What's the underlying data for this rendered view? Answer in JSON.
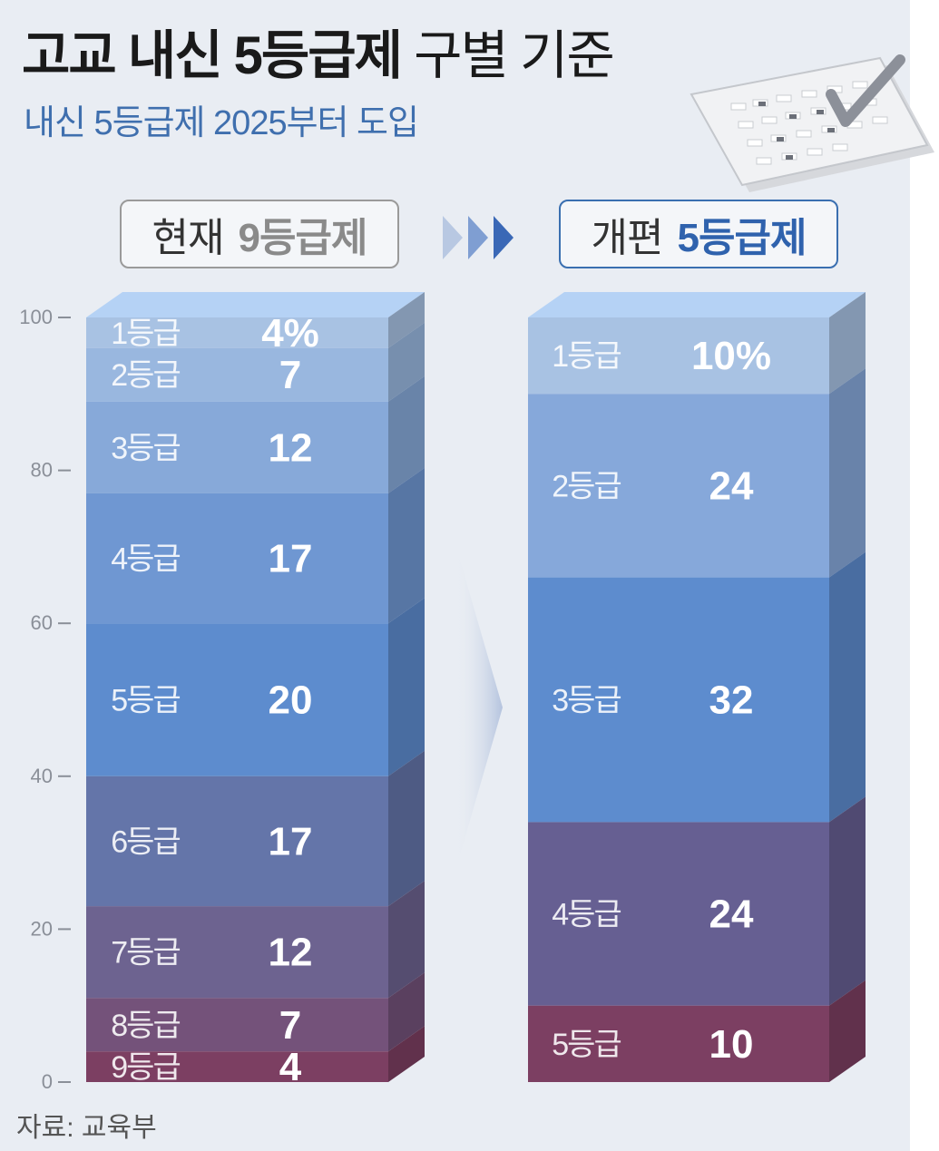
{
  "header": {
    "title_bold": "고교 내신 5등급제",
    "title_light": "구별 기준",
    "subtitle": "내신 5등급제 2025부터 도입"
  },
  "left_label": {
    "prefix": "현재",
    "accent": "9등급제"
  },
  "right_label": {
    "prefix": "개편",
    "accent": "5등급제"
  },
  "source": "자료: 교육부",
  "chart_data": [
    {
      "type": "bar",
      "stacked": true,
      "label": "현재 9등급제",
      "ylim": [
        0,
        100
      ],
      "yticks": [
        0,
        20,
        40,
        60,
        80,
        100
      ],
      "segments": [
        {
          "label": "1등급",
          "value": 4,
          "value_text": "4%",
          "color": "#a8c2e3"
        },
        {
          "label": "2등급",
          "value": 7,
          "value_text": "7",
          "color": "#99b7df"
        },
        {
          "label": "3등급",
          "value": 12,
          "value_text": "12",
          "color": "#87a9d9"
        },
        {
          "label": "4등급",
          "value": 17,
          "value_text": "17",
          "color": "#6f97d2"
        },
        {
          "label": "5등급",
          "value": 20,
          "value_text": "20",
          "color": "#5d8cce"
        },
        {
          "label": "6등급",
          "value": 17,
          "value_text": "17",
          "color": "#6475a9"
        },
        {
          "label": "7등급",
          "value": 12,
          "value_text": "12",
          "color": "#6d6390"
        },
        {
          "label": "8등급",
          "value": 7,
          "value_text": "7",
          "color": "#74527a"
        },
        {
          "label": "9등급",
          "value": 4,
          "value_text": "4",
          "color": "#7c3f62"
        }
      ]
    },
    {
      "type": "bar",
      "stacked": true,
      "label": "개편 5등급제",
      "ylim": [
        0,
        100
      ],
      "segments": [
        {
          "label": "1등급",
          "value": 10,
          "value_text": "10%",
          "color": "#a8c2e3"
        },
        {
          "label": "2등급",
          "value": 24,
          "value_text": "24",
          "color": "#86a8da"
        },
        {
          "label": "3등급",
          "value": 32,
          "value_text": "32",
          "color": "#5d8cce"
        },
        {
          "label": "4등급",
          "value": 24,
          "value_text": "24",
          "color": "#665f92"
        },
        {
          "label": "5등급",
          "value": 10,
          "value_text": "10",
          "color": "#7c3f62"
        }
      ]
    }
  ]
}
